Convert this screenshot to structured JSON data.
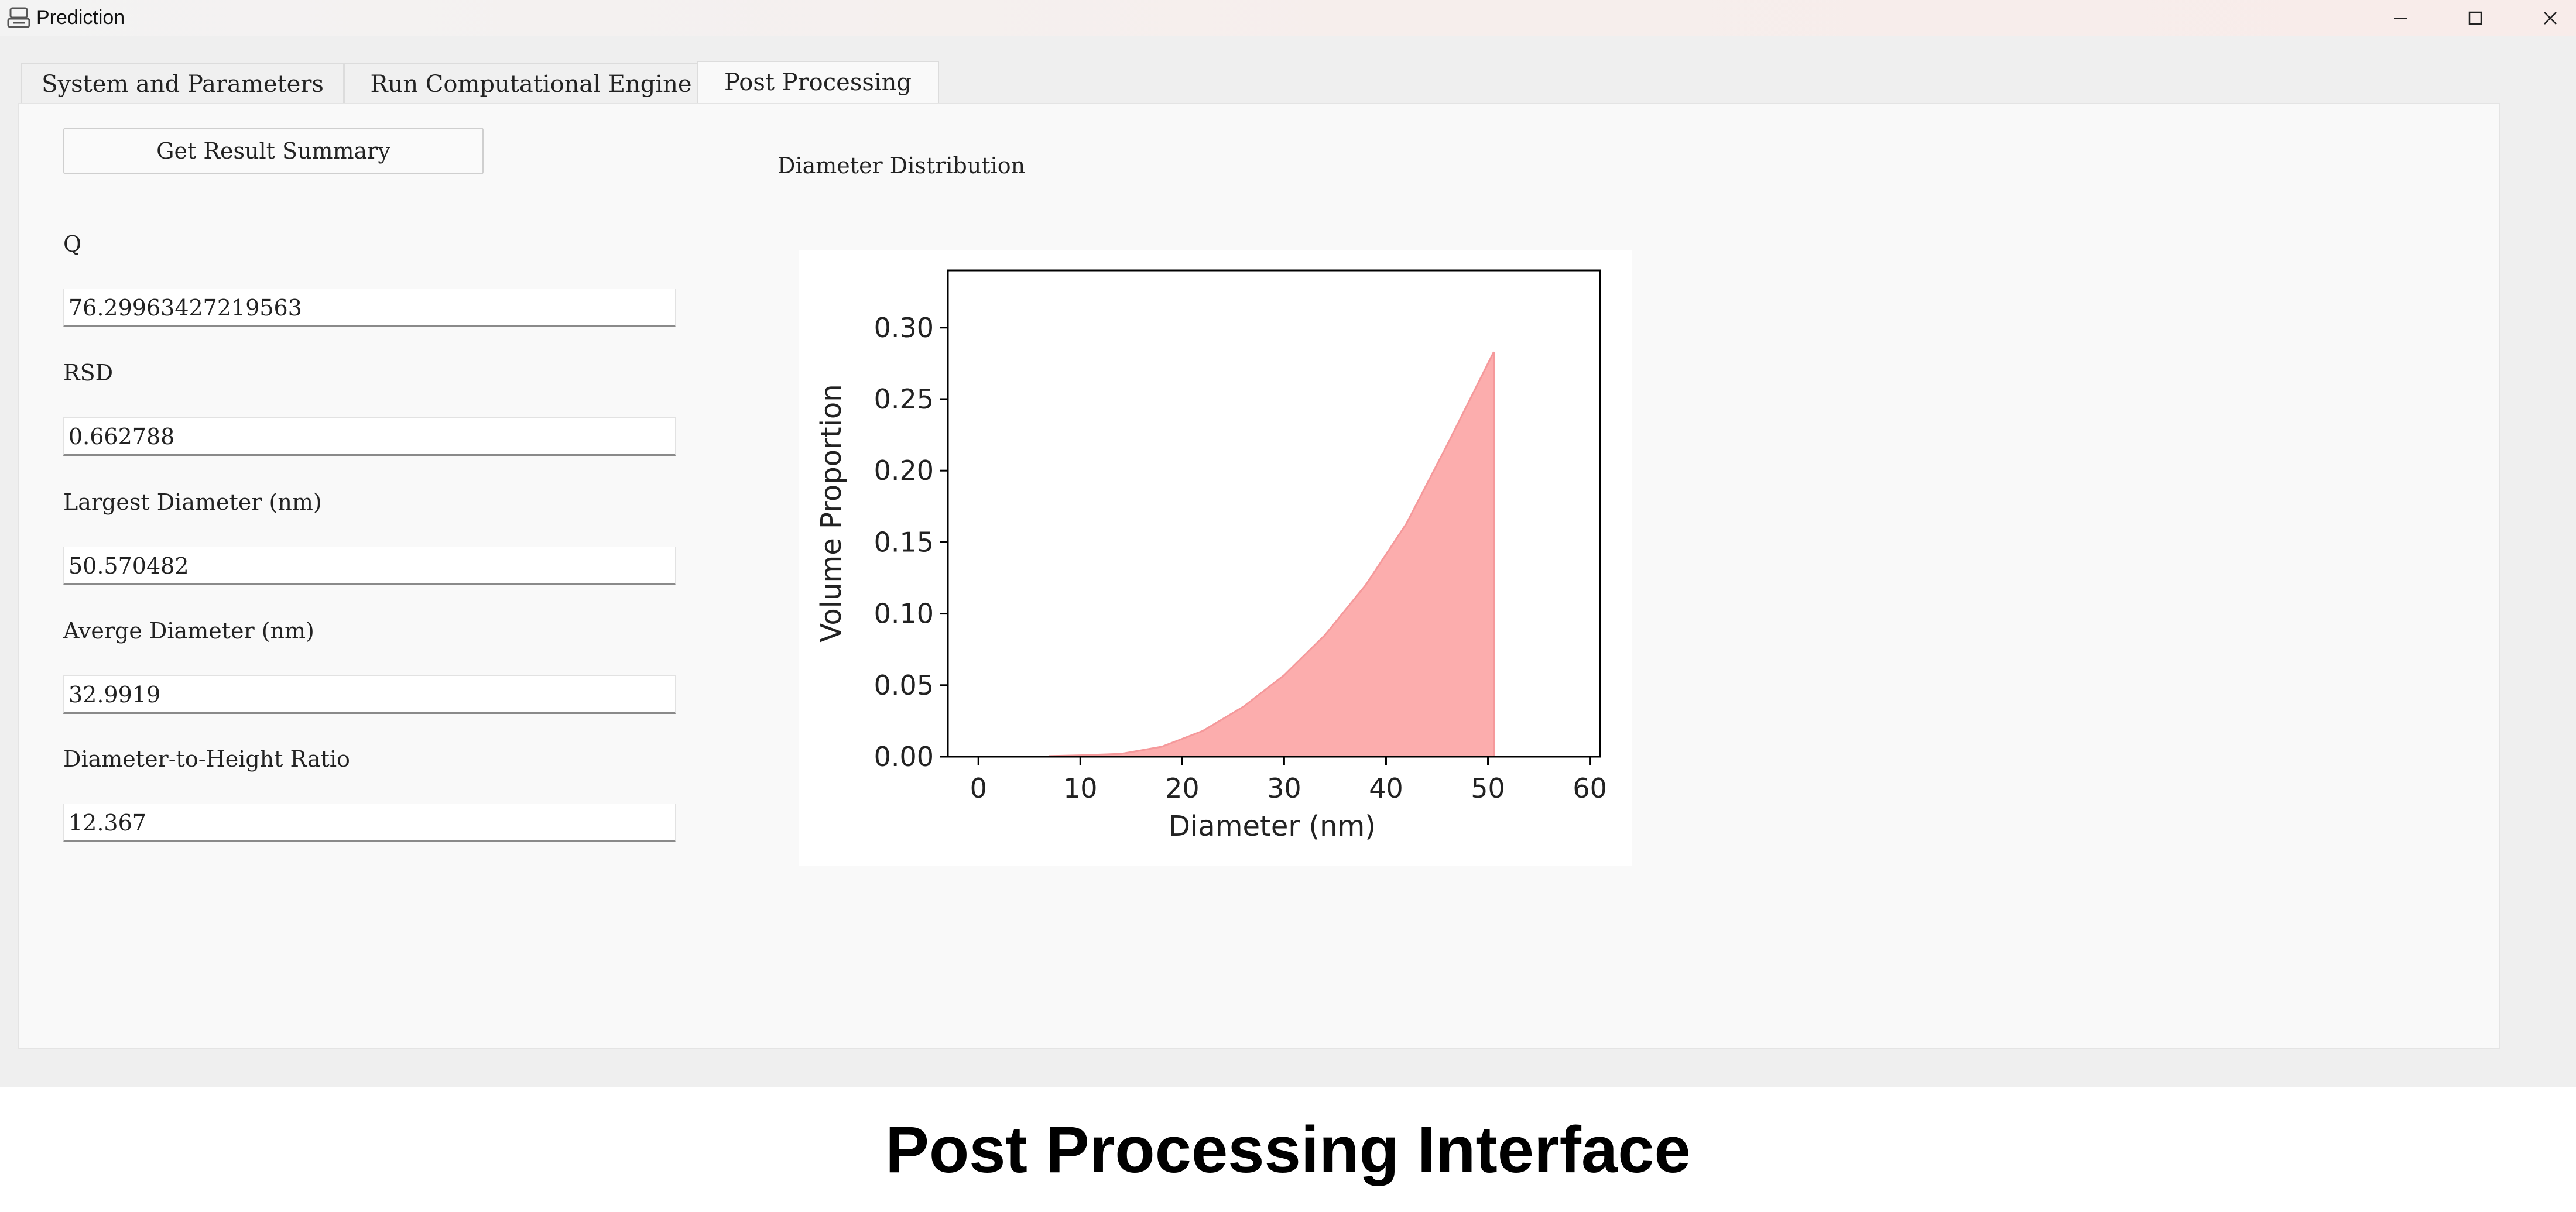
{
  "window": {
    "title": "Prediction",
    "icon": "app-icon"
  },
  "tabs": [
    {
      "label": "System and Parameters",
      "active": false
    },
    {
      "label": "Run Computational Engine",
      "active": false
    },
    {
      "label": "Post Processing",
      "active": true
    }
  ],
  "summary_button": "Get Result Summary",
  "fields": [
    {
      "label": "Q",
      "value": "76.29963427219563"
    },
    {
      "label": "RSD",
      "value": "0.662788"
    },
    {
      "label": "Largest Diameter (nm)",
      "value": "50.570482"
    },
    {
      "label": "Averge Diameter (nm)",
      "value": "32.9919"
    },
    {
      "label": "Diameter-to-Height Ratio",
      "value": "12.367"
    }
  ],
  "chart_section_title": "Diameter Distribution",
  "chart_data": {
    "type": "area",
    "xlabel": "Diameter (nm)",
    "ylabel": "Volume Proportion",
    "xlim": [
      -3,
      61
    ],
    "ylim": [
      0,
      0.34
    ],
    "xticks": [
      0,
      10,
      20,
      30,
      40,
      50,
      60
    ],
    "yticks": [
      0.0,
      0.05,
      0.1,
      0.15,
      0.2,
      0.25,
      0.3
    ],
    "ytick_labels": [
      "0.00",
      "0.05",
      "0.10",
      "0.15",
      "0.20",
      "0.25",
      "0.30"
    ],
    "x": [
      7,
      10,
      14,
      18,
      22,
      26,
      30,
      34,
      38,
      42,
      46,
      50.57
    ],
    "values": [
      0.0005,
      0.001,
      0.002,
      0.007,
      0.018,
      0.035,
      0.057,
      0.085,
      0.12,
      0.163,
      0.218,
      0.283
    ],
    "fill_color": "#fcadad",
    "line_color": "#f5999b",
    "grid": false
  },
  "caption": "Post Processing Interface"
}
